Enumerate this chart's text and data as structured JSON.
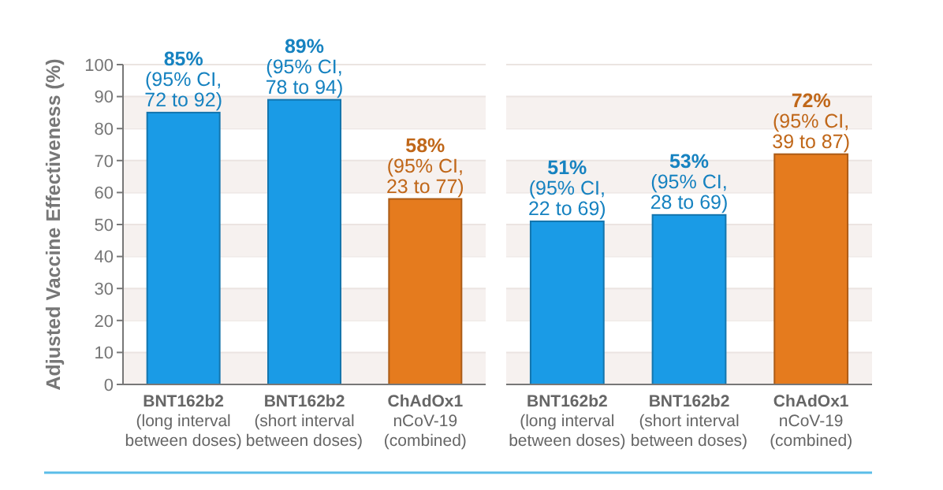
{
  "chart_data": [
    {
      "type": "bar",
      "ylabel": "Adjusted Vaccine Effectiveness (%)",
      "categories": [
        "BNT162b2\n(long interval\nbetween doses)",
        "BNT162b2\n(short interval\nbetween doses)",
        "ChAdOx1\nnCoV-19\n(combined)"
      ],
      "values": [
        85,
        89,
        58
      ],
      "colors": [
        "#1a9be6",
        "#1a9be6",
        "#e57b1e"
      ],
      "value_labels": [
        "85%\n(95% CI,\n72 to 92)",
        "89%\n(95% CI,\n78 to 94)",
        "58%\n(95% CI,\n23 to 77)"
      ],
      "ylim": [
        0,
        100
      ],
      "yticks": [
        0,
        10,
        20,
        30,
        40,
        50,
        60,
        70,
        80,
        90,
        100
      ],
      "grid": "y"
    },
    {
      "type": "bar",
      "categories": [
        "BNT162b2\n(long interval\nbetween doses)",
        "BNT162b2\n(short interval\nbetween doses)",
        "ChAdOx1\nnCoV-19\n(combined)"
      ],
      "values": [
        51,
        53,
        72
      ],
      "colors": [
        "#1a9be6",
        "#1a9be6",
        "#e57b1e"
      ],
      "value_labels": [
        "51%\n(95% CI,\n22 to 69)",
        "53%\n(95% CI,\n28 to 69)",
        "72%\n(95% CI,\n39 to 87)"
      ],
      "ylim": [
        0,
        100
      ],
      "yticks": [
        0,
        10,
        20,
        30,
        40,
        50,
        60,
        70,
        80,
        90,
        100
      ],
      "grid": "y",
      "tick_labels": "x"
    }
  ]
}
